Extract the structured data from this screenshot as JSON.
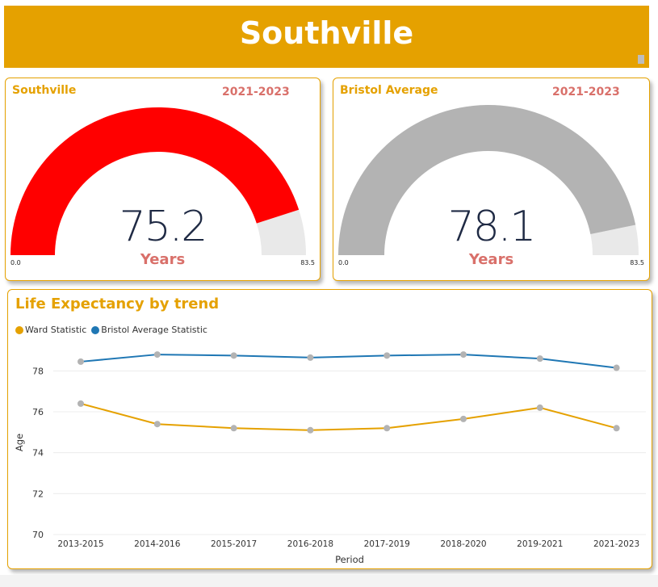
{
  "header": {
    "title": "Southville"
  },
  "gauges": [
    {
      "title": "Southville",
      "period": "2021-2023",
      "value": 75.2,
      "value_label": "75.2",
      "unit": "Years",
      "min": 0,
      "max": 83.5,
      "min_label": "0.0",
      "max_label": "83.5",
      "fill_color": "#FF0000",
      "track_color": "#E9E9E9"
    },
    {
      "title": "Bristol Average",
      "period": "2021-2023",
      "value": 78.1,
      "value_label": "78.1",
      "unit": "Years",
      "min": 0,
      "max": 83.5,
      "min_label": "0.0",
      "max_label": "83.5",
      "fill_color": "#B3B3B3",
      "track_color": "#E9E9E9"
    }
  ],
  "trend": {
    "title": "Life Expectancy by trend",
    "legend": [
      {
        "name": "Ward Statistic",
        "color": "#E5A100"
      },
      {
        "name": "Bristol Average Statistic",
        "color": "#1F77B4"
      }
    ]
  },
  "chart_data": {
    "type": "line",
    "title": "Life Expectancy by trend",
    "xlabel": "Period",
    "ylabel": "Age",
    "categories": [
      "2013-2015",
      "2014-2016",
      "2015-2017",
      "2016-2018",
      "2017-2019",
      "2018-2020",
      "2019-2021",
      "2021-2023"
    ],
    "ylim": [
      70,
      79
    ],
    "yticks": [
      70,
      72,
      74,
      76,
      78
    ],
    "grid": true,
    "legend_position": "top-left",
    "marker_color": "#B3B3B3",
    "series": [
      {
        "name": "Ward Statistic",
        "color": "#E5A100",
        "values": [
          76.4,
          75.4,
          75.2,
          75.1,
          75.2,
          75.65,
          76.2,
          75.2
        ]
      },
      {
        "name": "Bristol Average Statistic",
        "color": "#1F77B4",
        "values": [
          78.45,
          78.8,
          78.75,
          78.65,
          78.75,
          78.8,
          78.6,
          78.15
        ]
      }
    ]
  }
}
